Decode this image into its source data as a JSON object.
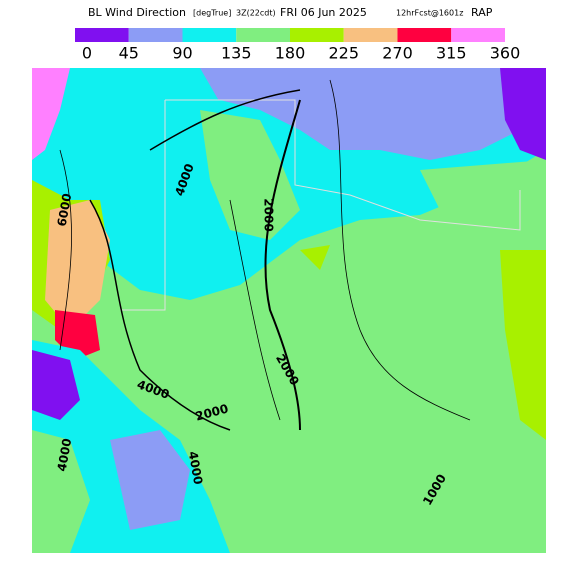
{
  "title": {
    "name": "BL Wind Direction",
    "units": "[degTrue]",
    "time": "3Z(22cdt)",
    "date": "FRI 06 Jun 2025",
    "forecast": "12hrFcst@1601z",
    "model": "RAP"
  },
  "colorbar": {
    "colors": [
      "#8010f0",
      "#8c9cf5",
      "#10f0f0",
      "#80ee80",
      "#a8f000",
      "#f8c080",
      "#ff0040",
      "#ff80ff"
    ],
    "labels": [
      0,
      45,
      90,
      135,
      180,
      225,
      270,
      315,
      360
    ]
  },
  "contour_labels": [
    "6000",
    "4000",
    "2000",
    "2000",
    "4000",
    "2000",
    "4000",
    "4000",
    "1000"
  ]
}
